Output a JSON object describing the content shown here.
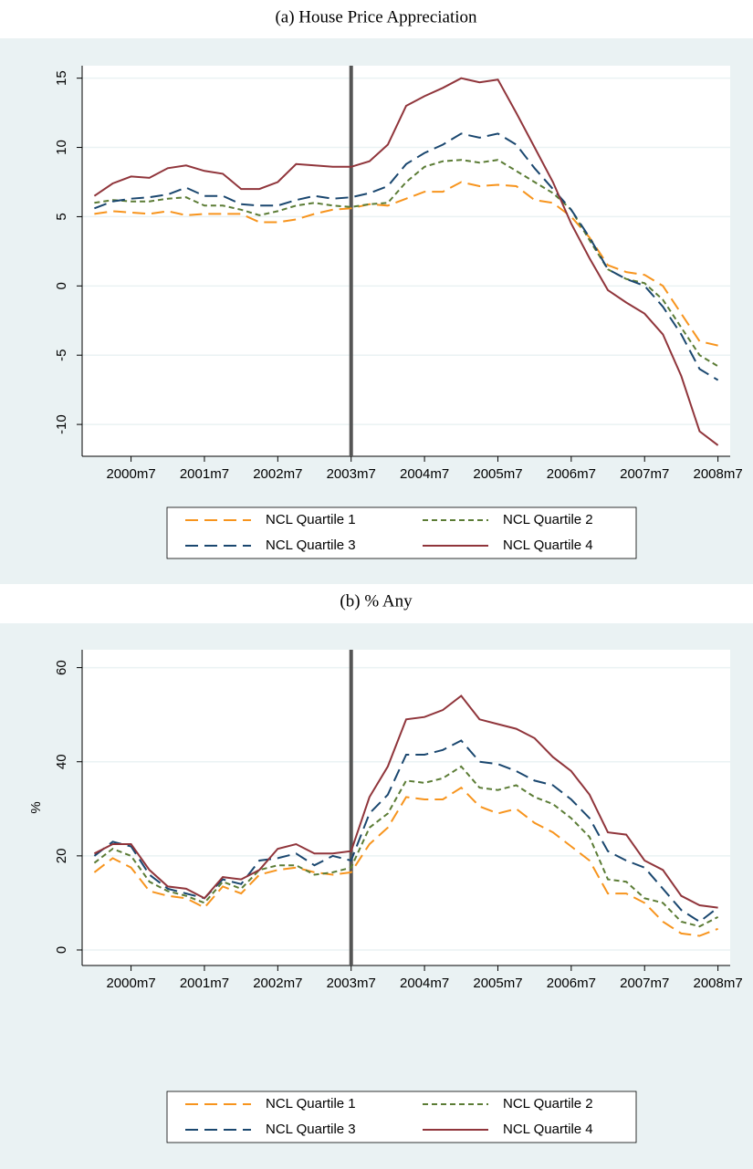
{
  "chart_data": [
    {
      "type": "line",
      "title": "(a) House Price Appreciation",
      "x": [
        "2000m1",
        "2000m4",
        "2000m7",
        "2000m10",
        "2001m1",
        "2001m4",
        "2001m7",
        "2001m10",
        "2002m1",
        "2002m4",
        "2002m7",
        "2002m10",
        "2003m1",
        "2003m4",
        "2003m7",
        "2003m10",
        "2004m1",
        "2004m4",
        "2004m7",
        "2004m10",
        "2005m1",
        "2005m4",
        "2005m7",
        "2005m10",
        "2006m1",
        "2006m4",
        "2006m7",
        "2006m10",
        "2007m1",
        "2007m4",
        "2007m7",
        "2007m10",
        "2008m1",
        "2008m4",
        "2008m7"
      ],
      "series": [
        {
          "name": "NCL Quartile 1",
          "color": "#f7941d",
          "dash": "longdash",
          "values": [
            5.2,
            5.4,
            5.3,
            5.2,
            5.4,
            5.1,
            5.2,
            5.2,
            5.2,
            4.6,
            4.6,
            4.8,
            5.2,
            5.5,
            5.6,
            5.9,
            5.8,
            6.3,
            6.8,
            6.8,
            7.5,
            7.2,
            7.3,
            7.2,
            6.2,
            6.0,
            5.0,
            3.5,
            1.5,
            1.0,
            0.8,
            0.0,
            -2.0,
            -4.0,
            -4.3
          ]
        },
        {
          "name": "NCL Quartile 2",
          "color": "#5b7c35",
          "dash": "dash",
          "values": [
            6.0,
            6.2,
            6.1,
            6.1,
            6.3,
            6.4,
            5.8,
            5.8,
            5.5,
            5.1,
            5.4,
            5.8,
            6.0,
            5.8,
            5.7,
            5.9,
            6.0,
            7.5,
            8.6,
            9.0,
            9.1,
            8.9,
            9.1,
            8.3,
            7.5,
            6.7,
            5.5,
            3.3,
            1.2,
            0.5,
            0.2,
            -1.0,
            -3.0,
            -5.0,
            -5.8
          ]
        },
        {
          "name": "NCL Quartile 3",
          "color": "#1a476f",
          "dash": "longdash",
          "values": [
            5.6,
            6.1,
            6.3,
            6.4,
            6.6,
            7.1,
            6.5,
            6.5,
            5.9,
            5.8,
            5.8,
            6.2,
            6.5,
            6.3,
            6.4,
            6.7,
            7.2,
            8.8,
            9.6,
            10.2,
            11.0,
            10.7,
            11.0,
            10.2,
            8.5,
            7.0,
            5.5,
            3.5,
            1.2,
            0.5,
            0.0,
            -1.5,
            -3.5,
            -6.0,
            -6.8
          ]
        },
        {
          "name": "NCL Quartile 4",
          "color": "#90353b",
          "dash": "solid",
          "values": [
            6.5,
            7.4,
            7.9,
            7.8,
            8.5,
            8.7,
            8.3,
            8.1,
            7.0,
            7.0,
            7.5,
            8.8,
            8.7,
            8.6,
            8.6,
            9.0,
            10.2,
            13.0,
            13.7,
            14.3,
            15.0,
            14.7,
            14.9,
            12.5,
            10.0,
            7.5,
            4.5,
            2.0,
            -0.3,
            -1.2,
            -2.0,
            -3.5,
            -6.5,
            -10.5,
            -11.5
          ]
        }
      ],
      "xlim": [
        "1999m11",
        "2008m9"
      ],
      "xticks": [
        "2000m7",
        "2001m7",
        "2002m7",
        "2003m7",
        "2004m7",
        "2005m7",
        "2006m7",
        "2007m7",
        "2008m7"
      ],
      "ylim": [
        -12.3,
        15.9
      ],
      "yticks": [
        -10,
        -5,
        0,
        5,
        10,
        15
      ],
      "grid": true,
      "vline": "2003m7",
      "legend": "bottom"
    },
    {
      "type": "line",
      "title": "(b) % Any",
      "ylabel": "%",
      "x": [
        "2000m1",
        "2000m4",
        "2000m7",
        "2000m10",
        "2001m1",
        "2001m4",
        "2001m7",
        "2001m10",
        "2002m1",
        "2002m4",
        "2002m7",
        "2002m10",
        "2003m1",
        "2003m4",
        "2003m7",
        "2003m10",
        "2004m1",
        "2004m4",
        "2004m7",
        "2004m10",
        "2005m1",
        "2005m4",
        "2005m7",
        "2005m10",
        "2006m1",
        "2006m4",
        "2006m7",
        "2006m10",
        "2007m1",
        "2007m4",
        "2007m7",
        "2007m10",
        "2008m1",
        "2008m4",
        "2008m7"
      ],
      "series": [
        {
          "name": "NCL Quartile 1",
          "color": "#f7941d",
          "dash": "longdash",
          "values": [
            16.5,
            19.5,
            17.5,
            12.5,
            11.5,
            11,
            9,
            13.5,
            12,
            16,
            17,
            17.5,
            16.5,
            16,
            16.5,
            22.5,
            26,
            32.5,
            32,
            32,
            34.5,
            30.5,
            29,
            30,
            27,
            25,
            22,
            19,
            12,
            12,
            10,
            6,
            3.5,
            3,
            4.5
          ]
        },
        {
          "name": "NCL Quartile 2",
          "color": "#5b7c35",
          "dash": "dash",
          "values": [
            18.5,
            21.5,
            20,
            14.5,
            12.5,
            11.5,
            10,
            14.5,
            13,
            17,
            18,
            18,
            16,
            16.5,
            17.5,
            26,
            29,
            36,
            35.5,
            36.5,
            39,
            34.5,
            34,
            35,
            32.5,
            31,
            28,
            24,
            15,
            14.5,
            11,
            10,
            6,
            5,
            7
          ]
        },
        {
          "name": "NCL Quartile 3",
          "color": "#1a476f",
          "dash": "longdash",
          "values": [
            20,
            23,
            22,
            16,
            13,
            12,
            11,
            15,
            14,
            19,
            19.5,
            20.5,
            18,
            20,
            19,
            29,
            33,
            41.5,
            41.5,
            42.5,
            44.5,
            40,
            39.5,
            38,
            36,
            35,
            32,
            28,
            21,
            19,
            17.5,
            13,
            8.5,
            6,
            9
          ]
        },
        {
          "name": "NCL Quartile 4",
          "color": "#90353b",
          "dash": "solid",
          "values": [
            20.5,
            22.5,
            22.5,
            17,
            13.5,
            13,
            11,
            15.5,
            15,
            17,
            21.5,
            22.5,
            20.5,
            20.5,
            21,
            32.5,
            39,
            49,
            49.5,
            51,
            54,
            49,
            48,
            47,
            45,
            41,
            38,
            33,
            25,
            24.5,
            19,
            17,
            11.5,
            9.5,
            9
          ]
        }
      ],
      "xlim": [
        "1999m11",
        "2008m9"
      ],
      "xticks": [
        "2000m7",
        "2001m7",
        "2002m7",
        "2003m7",
        "2004m7",
        "2005m7",
        "2006m7",
        "2007m7",
        "2008m7"
      ],
      "ylim": [
        -3.3,
        63.8
      ],
      "yticks": [
        0,
        20,
        40,
        60
      ],
      "grid": true,
      "vline": "2003m7",
      "legend": "bottom"
    }
  ]
}
